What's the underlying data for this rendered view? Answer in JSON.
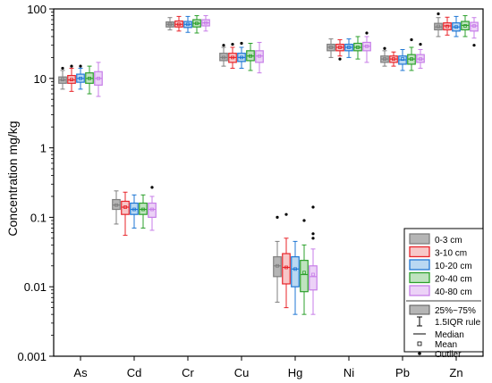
{
  "chart_data": {
    "type": "box",
    "ylabel": "Concentration mg/kg",
    "yscale": "log",
    "ylim": [
      0.001,
      100
    ],
    "ytick_labels": [
      "0.001",
      "0.01",
      "0.1",
      "1",
      "10",
      "100"
    ],
    "ytick_values": [
      0.001,
      0.01,
      0.1,
      1,
      10,
      100
    ],
    "categories": [
      "As",
      "Cd",
      "Cr",
      "Cu",
      "Hg",
      "Ni",
      "Pb",
      "Zn"
    ],
    "series": [
      {
        "name": "0-3 cm",
        "color": "#7f7f7f",
        "fill": "#b5b5b5",
        "boxes": [
          {
            "min": 7,
            "q1": 8.5,
            "median": 9.5,
            "mean": 9.6,
            "q3": 10.5,
            "max": 13,
            "outliers": [
              14
            ]
          },
          {
            "min": 0.08,
            "q1": 0.13,
            "median": 0.15,
            "mean": 0.15,
            "q3": 0.18,
            "max": 0.24,
            "outliers": []
          },
          {
            "min": 50,
            "q1": 55,
            "median": 60,
            "mean": 60,
            "q3": 65,
            "max": 75,
            "outliers": []
          },
          {
            "min": 15,
            "q1": 18,
            "median": 20,
            "mean": 20,
            "q3": 23,
            "max": 28,
            "outliers": [
              30
            ]
          },
          {
            "min": 0.006,
            "q1": 0.014,
            "median": 0.02,
            "mean": 0.02,
            "q3": 0.027,
            "max": 0.045,
            "outliers": [
              0.1
            ]
          },
          {
            "min": 20,
            "q1": 25,
            "median": 28,
            "mean": 28,
            "q3": 31,
            "max": 37,
            "outliers": []
          },
          {
            "min": 15,
            "q1": 17,
            "median": 19,
            "mean": 19,
            "q3": 21,
            "max": 25,
            "outliers": [
              27
            ]
          },
          {
            "min": 40,
            "q1": 50,
            "median": 55,
            "mean": 56,
            "q3": 62,
            "max": 75,
            "outliers": [
              85
            ]
          }
        ]
      },
      {
        "name": "3-10 cm",
        "color": "#e8242a",
        "fill": "#f7c7c8",
        "boxes": [
          {
            "min": 6.5,
            "q1": 8.5,
            "median": 9.5,
            "mean": 9.6,
            "q3": 11,
            "max": 14,
            "outliers": [
              15
            ]
          },
          {
            "min": 0.055,
            "q1": 0.11,
            "median": 0.14,
            "mean": 0.14,
            "q3": 0.17,
            "max": 0.23,
            "outliers": []
          },
          {
            "min": 48,
            "q1": 55,
            "median": 60,
            "mean": 60,
            "q3": 67,
            "max": 78,
            "outliers": []
          },
          {
            "min": 14,
            "q1": 17,
            "median": 20,
            "mean": 20,
            "q3": 23,
            "max": 28,
            "outliers": [
              31
            ]
          },
          {
            "min": 0.005,
            "q1": 0.011,
            "median": 0.019,
            "mean": 0.019,
            "q3": 0.03,
            "max": 0.05,
            "outliers": [
              0.11
            ]
          },
          {
            "min": 21,
            "q1": 25,
            "median": 28,
            "mean": 28,
            "q3": 31,
            "max": 36,
            "outliers": [
              19
            ]
          },
          {
            "min": 15,
            "q1": 17,
            "median": 19,
            "mean": 19,
            "q3": 21,
            "max": 24,
            "outliers": []
          },
          {
            "min": 42,
            "q1": 50,
            "median": 57,
            "mean": 56,
            "q3": 63,
            "max": 76,
            "outliers": []
          }
        ]
      },
      {
        "name": "10-20 cm",
        "color": "#1f77d4",
        "fill": "#b9d8f2",
        "boxes": [
          {
            "min": 7,
            "q1": 8.8,
            "median": 10,
            "mean": 10,
            "q3": 11.5,
            "max": 14,
            "outliers": [
              15
            ]
          },
          {
            "min": 0.07,
            "q1": 0.11,
            "median": 0.13,
            "mean": 0.13,
            "q3": 0.16,
            "max": 0.21,
            "outliers": []
          },
          {
            "min": 46,
            "q1": 54,
            "median": 60,
            "mean": 60,
            "q3": 66,
            "max": 78,
            "outliers": []
          },
          {
            "min": 14,
            "q1": 17.5,
            "median": 20,
            "mean": 20,
            "q3": 23,
            "max": 28,
            "outliers": [
              32
            ]
          },
          {
            "min": 0.004,
            "q1": 0.01,
            "median": 0.018,
            "mean": 0.018,
            "q3": 0.027,
            "max": 0.045,
            "outliers": []
          },
          {
            "min": 20,
            "q1": 25,
            "median": 28,
            "mean": 28,
            "q3": 31,
            "max": 37,
            "outliers": []
          },
          {
            "min": 13,
            "q1": 16,
            "median": 18.5,
            "mean": 19,
            "q3": 21,
            "max": 26,
            "outliers": []
          },
          {
            "min": 40,
            "q1": 48,
            "median": 55,
            "mean": 55,
            "q3": 63,
            "max": 78,
            "outliers": []
          }
        ]
      },
      {
        "name": "20-40 cm",
        "color": "#2ca02c",
        "fill": "#bfe3bf",
        "boxes": [
          {
            "min": 6,
            "q1": 8.5,
            "median": 10,
            "mean": 10,
            "q3": 12,
            "max": 15,
            "outliers": []
          },
          {
            "min": 0.07,
            "q1": 0.11,
            "median": 0.13,
            "mean": 0.13,
            "q3": 0.16,
            "max": 0.21,
            "outliers": []
          },
          {
            "min": 45,
            "q1": 55,
            "median": 62,
            "mean": 62,
            "q3": 70,
            "max": 80,
            "outliers": []
          },
          {
            "min": 13,
            "q1": 18,
            "median": 21,
            "mean": 21,
            "q3": 25,
            "max": 32,
            "outliers": []
          },
          {
            "min": 0.004,
            "q1": 0.0085,
            "median": 0.015,
            "mean": 0.016,
            "q3": 0.024,
            "max": 0.04,
            "outliers": [
              0.09
            ]
          },
          {
            "min": 19,
            "q1": 25,
            "median": 28,
            "mean": 28,
            "q3": 32,
            "max": 40,
            "outliers": []
          },
          {
            "min": 13,
            "q1": 16,
            "median": 19,
            "mean": 19,
            "q3": 22,
            "max": 28,
            "outliers": [
              36
            ]
          },
          {
            "min": 40,
            "q1": 50,
            "median": 58,
            "mean": 57,
            "q3": 66,
            "max": 80,
            "outliers": []
          }
        ]
      },
      {
        "name": "40-80 cm",
        "color": "#c77ee8",
        "fill": "#ecd2f7",
        "boxes": [
          {
            "min": 5.5,
            "q1": 8,
            "median": 10,
            "mean": 10,
            "q3": 12.5,
            "max": 17,
            "outliers": []
          },
          {
            "min": 0.065,
            "q1": 0.1,
            "median": 0.13,
            "mean": 0.13,
            "q3": 0.16,
            "max": 0.2,
            "outliers": [
              0.27
            ]
          },
          {
            "min": 48,
            "q1": 57,
            "median": 63,
            "mean": 63,
            "q3": 70,
            "max": 80,
            "outliers": []
          },
          {
            "min": 12,
            "q1": 17,
            "median": 21,
            "mean": 21,
            "q3": 25,
            "max": 33,
            "outliers": []
          },
          {
            "min": 0.004,
            "q1": 0.009,
            "median": 0.014,
            "mean": 0.015,
            "q3": 0.02,
            "max": 0.035,
            "outliers": [
              0.05,
              0.058,
              0.14
            ]
          },
          {
            "min": 17,
            "q1": 25,
            "median": 29,
            "mean": 29,
            "q3": 33,
            "max": 40,
            "outliers": [
              45
            ]
          },
          {
            "min": 14,
            "q1": 17,
            "median": 19,
            "mean": 19,
            "q3": 22,
            "max": 26,
            "outliers": [
              31
            ]
          },
          {
            "min": 38,
            "q1": 48,
            "median": 57,
            "mean": 57,
            "q3": 64,
            "max": 75,
            "outliers": [
              30
            ]
          }
        ]
      }
    ],
    "legend_position": "bottom-right",
    "legend_extra": [
      "25%~75%",
      "1.5IQR rule",
      "Median",
      "Mean",
      "Outlier"
    ]
  }
}
